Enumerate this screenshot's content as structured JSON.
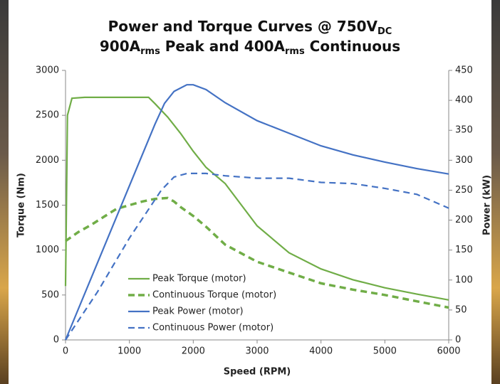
{
  "chart_data": {
    "type": "line",
    "title_lines": [
      [
        "Power and Torque Curves @ 750V",
        "DC"
      ],
      [
        "900A",
        "rms",
        " Peak and 400A",
        "rms",
        " Continuous"
      ]
    ],
    "x_label": "Speed (RPM)",
    "y_label": "Torque (Nm)",
    "y2_label": "Power (kW)",
    "xlim": [
      0,
      6000
    ],
    "xticks": [
      0,
      1000,
      2000,
      3000,
      4000,
      5000,
      6000
    ],
    "ylim": [
      0,
      3000
    ],
    "yticks": [
      0,
      500,
      1000,
      1500,
      2000,
      2500,
      3000
    ],
    "y2lim": [
      0,
      450
    ],
    "y2ticks": [
      0,
      50,
      100,
      150,
      200,
      250,
      300,
      350,
      400,
      450
    ],
    "grid": false,
    "series": [
      {
        "name": "Peak Torque (motor)",
        "color": "#70ad47",
        "dash": "solid",
        "axis": "y",
        "x": [
          0,
          30,
          100,
          300,
          600,
          1000,
          1300,
          1400,
          1600,
          1800,
          2000,
          2200,
          2500,
          3000,
          3500,
          4000,
          4500,
          5000,
          5500,
          6000
        ],
        "values": [
          600,
          2500,
          2690,
          2700,
          2700,
          2700,
          2700,
          2630,
          2480,
          2300,
          2100,
          1920,
          1740,
          1270,
          970,
          790,
          670,
          580,
          510,
          445
        ]
      },
      {
        "name": "Continuous Torque (motor)",
        "color": "#70ad47",
        "dash": "dashed",
        "axis": "y",
        "x": [
          0,
          200,
          400,
          600,
          800,
          1000,
          1200,
          1400,
          1600,
          1700,
          1800,
          2000,
          2200,
          2500,
          3000,
          3500,
          4000,
          4500,
          5000,
          5500,
          6000
        ],
        "values": [
          1100,
          1200,
          1280,
          1370,
          1460,
          1500,
          1540,
          1570,
          1580,
          1540,
          1480,
          1380,
          1260,
          1060,
          870,
          750,
          630,
          560,
          500,
          430,
          360
        ]
      },
      {
        "name": "Peak Power (motor)",
        "color": "#4472c4",
        "dash": "solid",
        "axis": "y2",
        "x": [
          0,
          1400,
          1550,
          1700,
          1900,
          2000,
          2200,
          2500,
          3000,
          3500,
          4000,
          4500,
          5000,
          5500,
          6000
        ],
        "values": [
          0,
          360,
          395,
          415,
          426,
          426,
          418,
          396,
          366,
          345,
          324,
          309,
          297,
          286,
          277
        ]
      },
      {
        "name": "Continuous Power (motor)",
        "color": "#4472c4",
        "dash": "dashed",
        "axis": "y2",
        "x": [
          0,
          500,
          1000,
          1500,
          1700,
          1900,
          2200,
          2500,
          3000,
          3500,
          4000,
          4500,
          5000,
          5500,
          6000
        ],
        "values": [
          0,
          80,
          170,
          250,
          272,
          278,
          278,
          274,
          270,
          270,
          263,
          261,
          253,
          243,
          220
        ]
      }
    ]
  }
}
